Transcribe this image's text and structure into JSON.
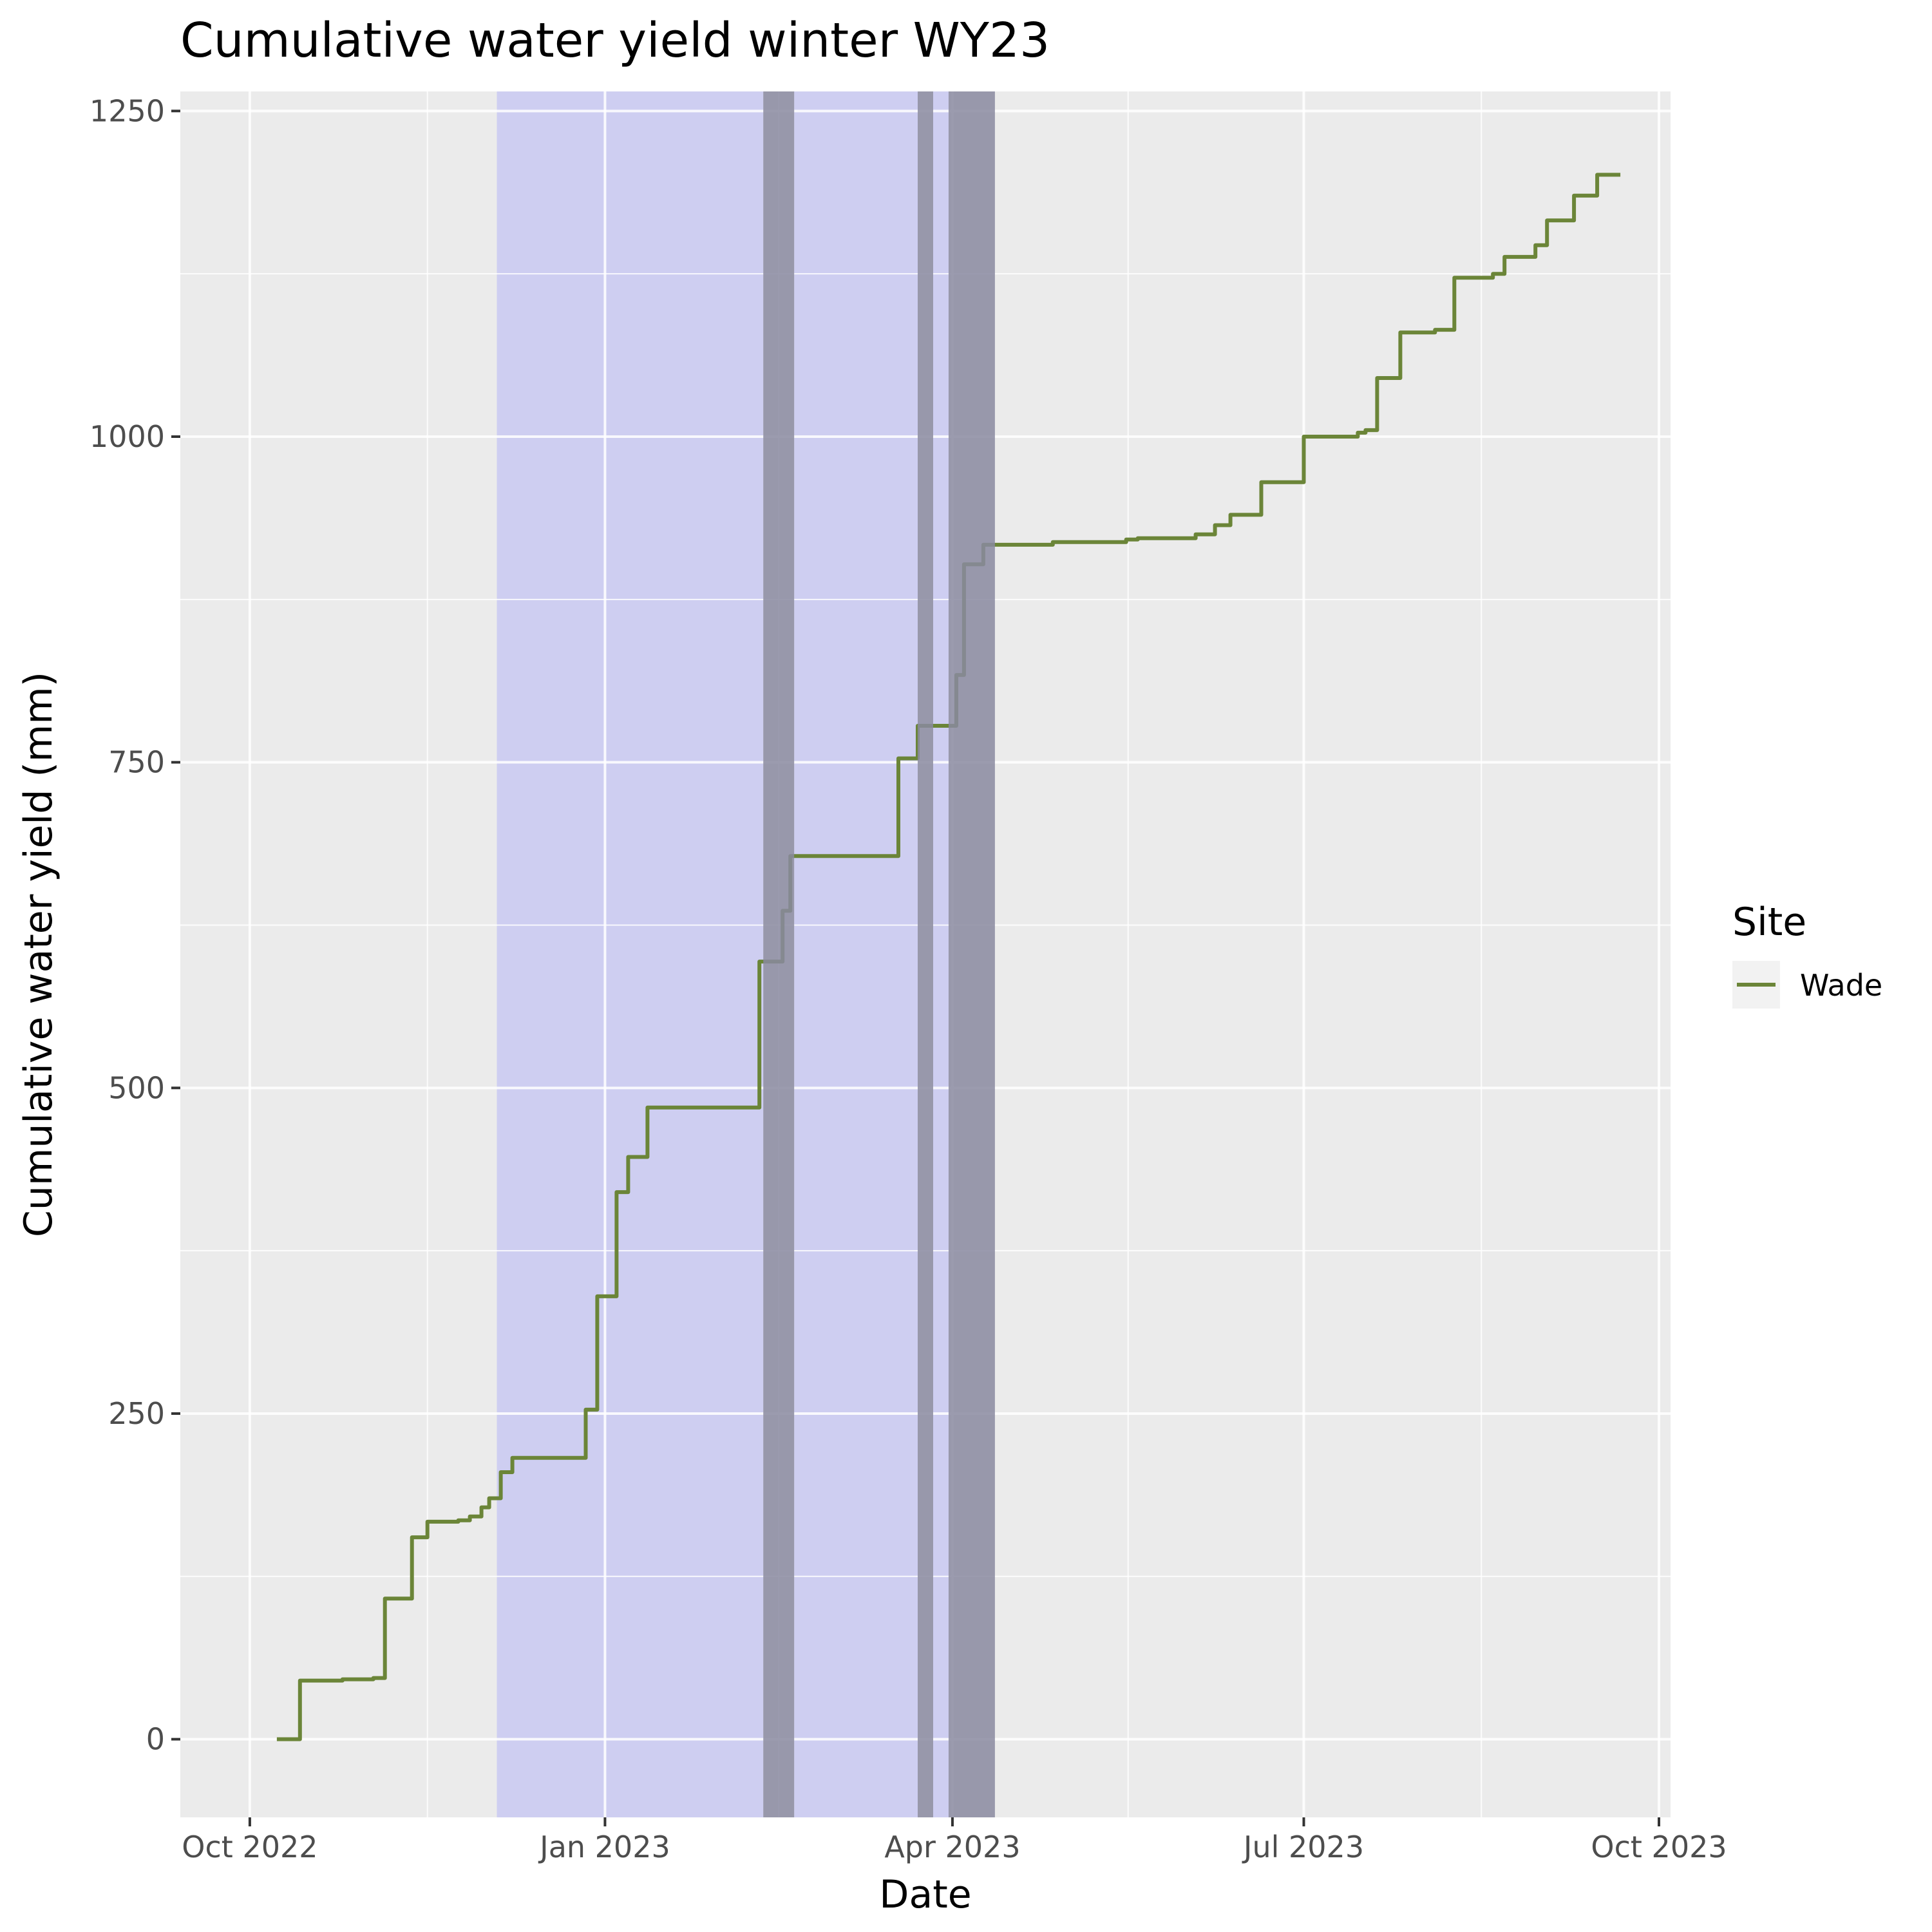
{
  "chart_data": {
    "type": "line",
    "title": "Cumulative water yield winter WY23",
    "xlabel": "Date",
    "ylabel": "Cumulative water yield (mm)",
    "xlim": [
      "2022-09-13",
      "2023-10-04"
    ],
    "ylim": [
      -60,
      1265
    ],
    "x_ticks": [
      {
        "date": "2022-10-01",
        "label": "Oct 2022"
      },
      {
        "date": "2023-01-01",
        "label": "Jan 2023"
      },
      {
        "date": "2023-04-01",
        "label": "Apr 2023"
      },
      {
        "date": "2023-07-01",
        "label": "Jul 2023"
      },
      {
        "date": "2023-10-01",
        "label": "Oct 2023"
      }
    ],
    "y_ticks": [
      0,
      250,
      500,
      750,
      1000,
      1250
    ],
    "grid": true,
    "shaded_periods": [
      {
        "start": "2022-12-04",
        "end": "2023-02-11",
        "color": "#bfbff5"
      },
      {
        "start": "2023-02-11",
        "end": "2023-02-19",
        "color": "#8a8aa0"
      },
      {
        "start": "2023-02-19",
        "end": "2023-03-23",
        "color": "#bfbff5"
      },
      {
        "start": "2023-03-23",
        "end": "2023-03-27",
        "color": "#8a8aa0"
      },
      {
        "start": "2023-03-27",
        "end": "2023-03-31",
        "color": "#bfbff5"
      },
      {
        "start": "2023-03-31",
        "end": "2023-04-12",
        "color": "#8a8aa0"
      }
    ],
    "legend_title": "Site",
    "legend_position": "right",
    "series": [
      {
        "name": "Wade",
        "color": "#6b8538",
        "step": true,
        "points": [
          [
            "2022-10-08",
            0
          ],
          [
            "2022-10-14",
            45
          ],
          [
            "2022-10-25",
            46
          ],
          [
            "2022-11-02",
            47
          ],
          [
            "2022-11-05",
            108
          ],
          [
            "2022-11-12",
            155
          ],
          [
            "2022-11-16",
            167
          ],
          [
            "2022-11-24",
            168
          ],
          [
            "2022-11-27",
            171
          ],
          [
            "2022-11-30",
            178
          ],
          [
            "2022-12-02",
            185
          ],
          [
            "2022-12-05",
            205
          ],
          [
            "2022-12-08",
            216
          ],
          [
            "2022-12-27",
            253
          ],
          [
            "2022-12-30",
            340
          ],
          [
            "2023-01-04",
            420
          ],
          [
            "2023-01-07",
            447
          ],
          [
            "2023-01-12",
            485
          ],
          [
            "2023-02-10",
            597
          ],
          [
            "2023-02-16",
            636
          ],
          [
            "2023-02-18",
            678
          ],
          [
            "2023-03-18",
            753
          ],
          [
            "2023-03-23",
            778
          ],
          [
            "2023-04-02",
            817
          ],
          [
            "2023-04-04",
            902
          ],
          [
            "2023-04-09",
            917
          ],
          [
            "2023-04-27",
            919
          ],
          [
            "2023-05-16",
            921
          ],
          [
            "2023-05-19",
            922
          ],
          [
            "2023-06-03",
            925
          ],
          [
            "2023-06-08",
            932
          ],
          [
            "2023-06-12",
            940
          ],
          [
            "2023-06-20",
            965
          ],
          [
            "2023-07-01",
            1000
          ],
          [
            "2023-07-15",
            1003
          ],
          [
            "2023-07-17",
            1005
          ],
          [
            "2023-07-20",
            1045
          ],
          [
            "2023-07-26",
            1080
          ],
          [
            "2023-08-04",
            1082
          ],
          [
            "2023-08-09",
            1122
          ],
          [
            "2023-08-19",
            1125
          ],
          [
            "2023-08-22",
            1138
          ],
          [
            "2023-08-30",
            1147
          ],
          [
            "2023-09-02",
            1166
          ],
          [
            "2023-09-09",
            1185
          ],
          [
            "2023-09-15",
            1201
          ],
          [
            "2023-09-21",
            1201
          ]
        ]
      }
    ]
  }
}
